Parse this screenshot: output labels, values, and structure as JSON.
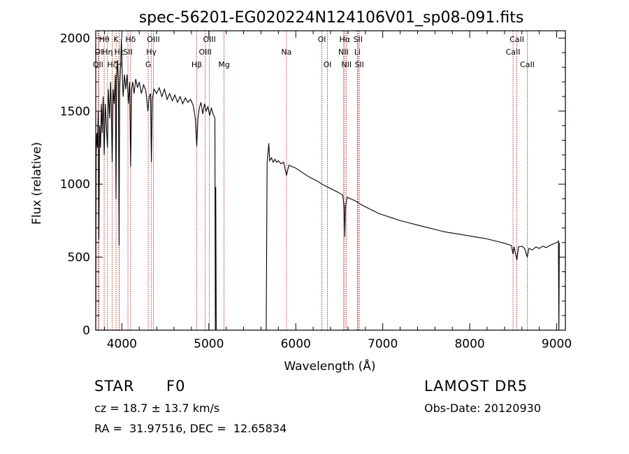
{
  "chart_data": {
    "type": "line",
    "title": "spec-56201-EG020224N124106V01_sp08-091.fits",
    "xlabel": "Wavelength (Å)",
    "ylabel": "Flux (relative)",
    "xlim": [
      3700,
      9100
    ],
    "ylim": [
      0,
      2050
    ],
    "x_ticks": [
      4000,
      5000,
      6000,
      7000,
      8000,
      9000
    ],
    "y_ticks": [
      0,
      500,
      1000,
      1500,
      2000
    ],
    "grid": false,
    "series": [
      {
        "points": [
          [
            3700,
            0
          ],
          [
            3705,
            1200
          ],
          [
            3712,
            1350
          ],
          [
            3720,
            1250
          ],
          [
            3728,
            1500
          ],
          [
            3736,
            620
          ],
          [
            3745,
            1400
          ],
          [
            3755,
            1250
          ],
          [
            3765,
            1550
          ],
          [
            3775,
            1350
          ],
          [
            3785,
            1600
          ],
          [
            3797,
            1200
          ],
          [
            3810,
            1550
          ],
          [
            3822,
            1400
          ],
          [
            3835,
            1250
          ],
          [
            3845,
            1650
          ],
          [
            3860,
            1450
          ],
          [
            3870,
            1700
          ],
          [
            3878,
            1550
          ],
          [
            3889,
            1150
          ],
          [
            3900,
            1650
          ],
          [
            3912,
            1550
          ],
          [
            3925,
            1750
          ],
          [
            3933,
            900
          ],
          [
            3940,
            1700
          ],
          [
            3950,
            1850
          ],
          [
            3960,
            1700
          ],
          [
            3968,
            580
          ],
          [
            3975,
            1650
          ],
          [
            3985,
            1800
          ],
          [
            3995,
            2000
          ],
          [
            4005,
            1750
          ],
          [
            4015,
            1600
          ],
          [
            4030,
            1750
          ],
          [
            4045,
            1650
          ],
          [
            4060,
            1750
          ],
          [
            4075,
            1550
          ],
          [
            4090,
            1700
          ],
          [
            4101,
            1120
          ],
          [
            4112,
            1650
          ],
          [
            4125,
            1700
          ],
          [
            4140,
            1620
          ],
          [
            4160,
            1720
          ],
          [
            4180,
            1660
          ],
          [
            4200,
            1700
          ],
          [
            4225,
            1620
          ],
          [
            4250,
            1680
          ],
          [
            4275,
            1640
          ],
          [
            4300,
            1500
          ],
          [
            4315,
            1600
          ],
          [
            4330,
            1620
          ],
          [
            4340,
            1150
          ],
          [
            4350,
            1580
          ],
          [
            4370,
            1650
          ],
          [
            4400,
            1620
          ],
          [
            4430,
            1660
          ],
          [
            4460,
            1600
          ],
          [
            4490,
            1650
          ],
          [
            4520,
            1580
          ],
          [
            4550,
            1620
          ],
          [
            4580,
            1570
          ],
          [
            4610,
            1610
          ],
          [
            4640,
            1560
          ],
          [
            4670,
            1600
          ],
          [
            4700,
            1550
          ],
          [
            4730,
            1590
          ],
          [
            4760,
            1560
          ],
          [
            4790,
            1580
          ],
          [
            4820,
            1540
          ],
          [
            4845,
            1450
          ],
          [
            4861,
            1260
          ],
          [
            4875,
            1450
          ],
          [
            4890,
            1520
          ],
          [
            4910,
            1560
          ],
          [
            4930,
            1480
          ],
          [
            4950,
            1550
          ],
          [
            4970,
            1500
          ],
          [
            4990,
            1530
          ],
          [
            5010,
            1470
          ],
          [
            5030,
            1520
          ],
          [
            5050,
            1480
          ],
          [
            5070,
            1450
          ],
          [
            5075,
            0
          ],
          [
            5080,
            980
          ],
          [
            5085,
            0
          ],
          [
            5660,
            0
          ],
          [
            5670,
            1150
          ],
          [
            5680,
            1210
          ],
          [
            5690,
            1280
          ],
          [
            5700,
            1160
          ],
          [
            5720,
            1180
          ],
          [
            5740,
            1150
          ],
          [
            5760,
            1170
          ],
          [
            5780,
            1150
          ],
          [
            5800,
            1160
          ],
          [
            5830,
            1140
          ],
          [
            5860,
            1150
          ],
          [
            5893,
            1060
          ],
          [
            5920,
            1130
          ],
          [
            5960,
            1120
          ],
          [
            6000,
            1110
          ],
          [
            6050,
            1090
          ],
          [
            6100,
            1070
          ],
          [
            6150,
            1050
          ],
          [
            6200,
            1035
          ],
          [
            6250,
            1020
          ],
          [
            6300,
            1000
          ],
          [
            6350,
            985
          ],
          [
            6400,
            970
          ],
          [
            6450,
            955
          ],
          [
            6500,
            940
          ],
          [
            6540,
            925
          ],
          [
            6555,
            850
          ],
          [
            6563,
            640
          ],
          [
            6572,
            850
          ],
          [
            6590,
            910
          ],
          [
            6650,
            895
          ],
          [
            6700,
            880
          ],
          [
            6750,
            860
          ],
          [
            6800,
            845
          ],
          [
            6850,
            830
          ],
          [
            6900,
            815
          ],
          [
            6950,
            800
          ],
          [
            7000,
            790
          ],
          [
            7100,
            770
          ],
          [
            7200,
            750
          ],
          [
            7300,
            735
          ],
          [
            7400,
            720
          ],
          [
            7500,
            705
          ],
          [
            7600,
            690
          ],
          [
            7700,
            675
          ],
          [
            7800,
            665
          ],
          [
            7900,
            655
          ],
          [
            8000,
            645
          ],
          [
            8100,
            635
          ],
          [
            8200,
            625
          ],
          [
            8300,
            610
          ],
          [
            8400,
            595
          ],
          [
            8480,
            580
          ],
          [
            8498,
            520
          ],
          [
            8510,
            570
          ],
          [
            8542,
            480
          ],
          [
            8560,
            570
          ],
          [
            8600,
            575
          ],
          [
            8630,
            560
          ],
          [
            8662,
            500
          ],
          [
            8680,
            560
          ],
          [
            8720,
            550
          ],
          [
            8760,
            570
          ],
          [
            8800,
            560
          ],
          [
            8840,
            575
          ],
          [
            8880,
            565
          ],
          [
            8920,
            580
          ],
          [
            8960,
            590
          ],
          [
            9000,
            600
          ],
          [
            9020,
            610
          ],
          [
            9025,
            0
          ],
          [
            9030,
            600
          ]
        ]
      }
    ],
    "lines": [
      {
        "label": "OII",
        "x": 3727,
        "row": 3
      },
      {
        "label": "OI",
        "x": 3736,
        "row": 2
      },
      {
        "label": "Hθ",
        "x": 3797,
        "row": 1
      },
      {
        "label": "Hη",
        "x": 3835,
        "row": 2
      },
      {
        "label": "Hζ",
        "x": 3889,
        "row": 3
      },
      {
        "label": "K",
        "x": 3933,
        "row": 1
      },
      {
        "label": "H",
        "x": 3968,
        "row": 3
      },
      {
        "label": "Hε",
        "x": 3970,
        "row": 2
      },
      {
        "label": "SII",
        "x": 4070,
        "row": 2
      },
      {
        "label": "Hδ",
        "x": 4101,
        "row": 1
      },
      {
        "label": "G",
        "x": 4304,
        "row": 3
      },
      {
        "label": "Hγ",
        "x": 4340,
        "row": 2
      },
      {
        "label": "OIII",
        "x": 4363,
        "row": 1
      },
      {
        "label": "Hβ",
        "x": 4861,
        "row": 3
      },
      {
        "label": "OIII",
        "x": 4959,
        "row": 2
      },
      {
        "label": "OIII",
        "x": 5007,
        "row": 1
      },
      {
        "label": "Mg",
        "x": 5175,
        "row": 3
      },
      {
        "label": "Na",
        "x": 5893,
        "row": 2
      },
      {
        "label": "OI",
        "x": 6300,
        "row": 1
      },
      {
        "label": "OI",
        "x": 6364,
        "row": 3
      },
      {
        "label": "NII",
        "x": 6548,
        "row": 2
      },
      {
        "label": "Hα",
        "x": 6563,
        "row": 1
      },
      {
        "label": "NII",
        "x": 6583,
        "row": 3
      },
      {
        "label": "Li",
        "x": 6708,
        "row": 2
      },
      {
        "label": "SII",
        "x": 6716,
        "row": 1
      },
      {
        "label": "SII",
        "x": 6731,
        "row": 3
      },
      {
        "label": "CaII",
        "x": 8498,
        "row": 2
      },
      {
        "label": "CaII",
        "x": 8542,
        "row": 1
      },
      {
        "label": "CaII",
        "x": 8662,
        "row": 3
      }
    ]
  },
  "info": {
    "class_label": "STAR",
    "subclass": "F0",
    "survey": "LAMOST DR5",
    "cz_text": "cz = 18.7 ± 13.7 km/s",
    "obs_date": "Obs-Date: 20120930",
    "coords": "RA =  31.97516, DEC =  12.65834"
  },
  "colors": {
    "spectrum": "#000000",
    "line_markers": "#b22222",
    "axes": "#000000"
  }
}
